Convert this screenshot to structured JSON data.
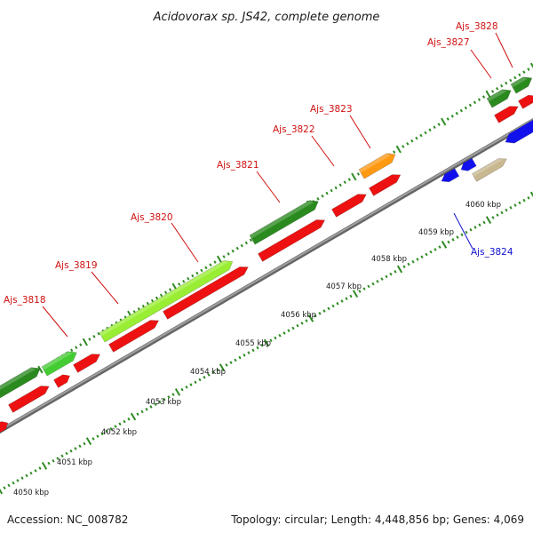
{
  "title": "Acidovorax sp. JS42, complete genome",
  "accession": "Accession: NC_008782",
  "summary": "Topology: circular; Length: 4,448,856 bp; Genes: 4,069",
  "colors": {
    "backbone": "#8a8a8a",
    "tick": "#2e8b22",
    "forward_label": "#d01010",
    "reverse_label": "#1010d0",
    "red": "#ee1111",
    "dark_green": "#2a8a1e",
    "light_green": "#99ee33",
    "mid_green": "#44cc33",
    "orange": "#ff9911",
    "blue": "#1111ee",
    "tan": "#c8b890"
  },
  "scale_labels": [
    "4050 kbp",
    "4051 kbp",
    "4052 kbp",
    "4053 kbp",
    "4054 kbp",
    "4055 kbp",
    "4056 kbp",
    "4057 kbp",
    "4058 kbp",
    "4059 kbp",
    "4060 kbp"
  ],
  "gene_labels": [
    {
      "text": "Ajs_3818",
      "strand": "forward"
    },
    {
      "text": "Ajs_3819",
      "strand": "forward"
    },
    {
      "text": "Ajs_3820",
      "strand": "forward"
    },
    {
      "text": "Ajs_3821",
      "strand": "forward"
    },
    {
      "text": "Ajs_3822",
      "strand": "forward"
    },
    {
      "text": "Ajs_3823",
      "strand": "forward"
    },
    {
      "text": "Ajs_3827",
      "strand": "forward"
    },
    {
      "text": "Ajs_3828",
      "strand": "forward"
    },
    {
      "text": "Ajs_3824",
      "strand": "reverse"
    }
  ]
}
